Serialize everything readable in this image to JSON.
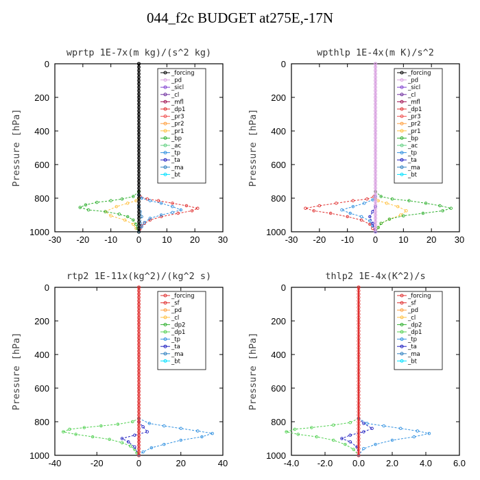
{
  "figure_title": "044_f2c  BUDGET at275E,-17N",
  "colors": {
    "forcing": "#000000",
    "pd": "#d8a0e0",
    "sicl": "#8040d0",
    "cl": "#7030a0",
    "mfl": "#a01050",
    "dp1": "#e03030",
    "pr3": "#f05050",
    "pr2": "#ffa040",
    "pr1": "#ffc040",
    "bp": "#30b030",
    "ac": "#60d080",
    "tp": "#3090e0",
    "ta": "#2020c0",
    "ma": "#3080c0",
    "bt": "#00e0ff",
    "sf": "#e03030",
    "dp2": "#40c040",
    "pd2": "#ffa040",
    "cl2": "#ffc040"
  },
  "chart_data": [
    {
      "type": "line",
      "title": "wprtp   1E-7x(m kg)/(s^2 kg)",
      "ylabel": "Pressure [hPa]",
      "xlim": [
        -30,
        30
      ],
      "ylim": [
        1000,
        0
      ],
      "xticks": [
        "-30",
        "-20",
        "-10",
        "0",
        "10",
        "20",
        "30"
      ],
      "yticks": [
        "0",
        "200",
        "400",
        "600",
        "800",
        "1000"
      ],
      "legend": [
        "_forcing",
        "_pd",
        "_sicl",
        "_cl",
        "_mfl",
        "_dp1",
        "_pr3",
        "_pr2",
        "_pr1",
        "_bp",
        "_ac",
        "_tp",
        "_ta",
        "_ma",
        "_bt"
      ],
      "series": [
        {
          "name": "_forcing",
          "color": "#000000",
          "x": [
            0,
            0
          ],
          "y": [
            0,
            1000
          ]
        },
        {
          "name": "_dp1",
          "color": "#e03030",
          "x": [
            0,
            0.5,
            3,
            7,
            12,
            17,
            21,
            19,
            14,
            8,
            4,
            2,
            1,
            0.5,
            0.2,
            0
          ],
          "y": [
            760,
            790,
            805,
            815,
            830,
            845,
            860,
            875,
            890,
            910,
            930,
            950,
            965,
            980,
            990,
            1000
          ]
        },
        {
          "name": "_pr1",
          "color": "#ffc040",
          "x": [
            0,
            -1,
            -4,
            -8,
            -12,
            -10,
            -5,
            -2,
            -1,
            0
          ],
          "y": [
            800,
            815,
            830,
            850,
            880,
            905,
            930,
            955,
            980,
            1000
          ]
        },
        {
          "name": "_bp",
          "color": "#30b030",
          "x": [
            0,
            -2,
            -6,
            -10,
            -15,
            -19,
            -21,
            -18,
            -12,
            -7,
            -4,
            -2,
            -1,
            -0.5,
            0
          ],
          "y": [
            760,
            790,
            805,
            815,
            825,
            840,
            855,
            870,
            880,
            895,
            910,
            930,
            955,
            980,
            1000
          ]
        },
        {
          "name": "_tp",
          "color": "#3090e0",
          "x": [
            0,
            1,
            4,
            8,
            12,
            15,
            12,
            8,
            4,
            2,
            1,
            0
          ],
          "y": [
            780,
            800,
            815,
            830,
            850,
            870,
            885,
            900,
            920,
            945,
            970,
            1000
          ]
        },
        {
          "name": "_ma",
          "color": "#3080c0",
          "x": [
            0,
            0.5,
            1,
            0.5,
            0
          ],
          "y": [
            850,
            880,
            910,
            950,
            1000
          ]
        }
      ]
    },
    {
      "type": "line",
      "title": "wpthlp   1E-4x(m K)/s^2",
      "ylabel": "Pressure [hPa]",
      "xlim": [
        -30,
        30
      ],
      "ylim": [
        1000,
        0
      ],
      "xticks": [
        "-30",
        "-20",
        "-10",
        "0",
        "10",
        "20",
        "30"
      ],
      "yticks": [
        "0",
        "200",
        "400",
        "600",
        "800",
        "1000"
      ],
      "legend": [
        "_forcing",
        "_pd",
        "_sicl",
        "_cl",
        "_mfl",
        "_dp1",
        "_pr3",
        "_pr2",
        "_pr1",
        "_bp",
        "_ac",
        "_tp",
        "_ta",
        "_ma",
        "_bt"
      ],
      "series": [
        {
          "name": "_pd",
          "color": "#d8a0e0",
          "x": [
            0,
            0
          ],
          "y": [
            0,
            1000
          ]
        },
        {
          "name": "_dp1",
          "color": "#e03030",
          "x": [
            0,
            -0.5,
            -3,
            -8,
            -14,
            -20,
            -25,
            -22,
            -16,
            -10,
            -5,
            -2,
            -1,
            0
          ],
          "y": [
            760,
            790,
            805,
            815,
            830,
            845,
            860,
            875,
            890,
            910,
            930,
            955,
            980,
            1000
          ]
        },
        {
          "name": "_pr1",
          "color": "#ffc040",
          "x": [
            0,
            1,
            4,
            8,
            11,
            9,
            5,
            2,
            1,
            0
          ],
          "y": [
            800,
            815,
            830,
            850,
            875,
            900,
            925,
            950,
            975,
            1000
          ]
        },
        {
          "name": "_bp",
          "color": "#30b030",
          "x": [
            0,
            2,
            6,
            12,
            18,
            23,
            27,
            24,
            17,
            10,
            5,
            2,
            1,
            0
          ],
          "y": [
            760,
            790,
            805,
            815,
            830,
            845,
            860,
            875,
            890,
            905,
            925,
            950,
            975,
            1000
          ]
        },
        {
          "name": "_tp",
          "color": "#3090e0",
          "x": [
            0,
            -1,
            -4,
            -8,
            -12,
            -9,
            -5,
            -2,
            -1,
            0
          ],
          "y": [
            790,
            810,
            830,
            850,
            870,
            890,
            910,
            935,
            965,
            1000
          ]
        },
        {
          "name": "_ta",
          "color": "#2020c0",
          "x": [
            0,
            -1,
            -2,
            -1,
            0
          ],
          "y": [
            850,
            880,
            910,
            950,
            1000
          ]
        }
      ]
    },
    {
      "type": "line",
      "title": "rtp2   1E-11x(kg^2)/(kg^2 s)",
      "ylabel": "Pressure [hPa]",
      "xlim": [
        -40,
        40
      ],
      "ylim": [
        1000,
        0
      ],
      "xticks": [
        "-40",
        "-20",
        "0",
        "20",
        "40"
      ],
      "yticks": [
        "0",
        "200",
        "400",
        "600",
        "800",
        "1000"
      ],
      "legend": [
        "_forcing",
        "_sf",
        "_pd",
        "_cl",
        "_dp2",
        "_dp1",
        "_tp",
        "_ta",
        "_ma",
        "_bt"
      ],
      "series": [
        {
          "name": "_forcing",
          "color": "#e03030",
          "x": [
            0,
            0
          ],
          "y": [
            0,
            1000
          ]
        },
        {
          "name": "_dp1",
          "color": "#50d050",
          "x": [
            0,
            -3,
            -10,
            -18,
            -26,
            -33,
            -36,
            -30,
            -22,
            -14,
            -8,
            -4,
            -2,
            -1,
            0
          ],
          "y": [
            780,
            800,
            815,
            825,
            835,
            845,
            860,
            875,
            890,
            905,
            925,
            945,
            965,
            985,
            1000
          ]
        },
        {
          "name": "_ta",
          "color": "#2020c0",
          "x": [
            0,
            2,
            4,
            -2,
            -8,
            -5,
            -2,
            0
          ],
          "y": [
            800,
            830,
            860,
            880,
            900,
            920,
            950,
            1000
          ]
        },
        {
          "name": "_ma",
          "color": "#3090e0",
          "x": [
            0,
            5,
            12,
            20,
            28,
            35,
            30,
            20,
            12,
            6,
            2,
            0
          ],
          "y": [
            780,
            810,
            825,
            840,
            855,
            870,
            890,
            910,
            935,
            955,
            980,
            1000
          ]
        }
      ]
    },
    {
      "type": "line",
      "title": "thlp2   1E-4x(K^2)/s",
      "ylabel": "Pressure [hPa]",
      "xlim": [
        -4,
        6
      ],
      "ylim": [
        1000,
        0
      ],
      "xticks": [
        "-4.0",
        "-2.0",
        "0.0",
        "2.0",
        "4.0",
        "6.0"
      ],
      "yticks": [
        "0",
        "200",
        "400",
        "600",
        "800",
        "1000"
      ],
      "legend": [
        "_forcing",
        "_sf",
        "_pd",
        "_cl",
        "_dp2",
        "_dp1",
        "_tp",
        "_ta",
        "_ma",
        "_bt"
      ],
      "series": [
        {
          "name": "_forcing",
          "color": "#e03030",
          "x": [
            0,
            0
          ],
          "y": [
            0,
            1000
          ]
        },
        {
          "name": "_dp1",
          "color": "#50d050",
          "x": [
            0,
            -0.5,
            -1.5,
            -2.8,
            -3.8,
            -4.3,
            -3.6,
            -2.5,
            -1.5,
            -0.8,
            -0.3,
            0
          ],
          "y": [
            780,
            805,
            820,
            835,
            845,
            860,
            875,
            890,
            910,
            935,
            965,
            1000
          ]
        },
        {
          "name": "_ta",
          "color": "#2020c0",
          "x": [
            0,
            0.3,
            0.8,
            0.3,
            -0.5,
            -1,
            -0.5,
            -0.1,
            0
          ],
          "y": [
            780,
            810,
            840,
            860,
            880,
            900,
            920,
            950,
            1000
          ]
        },
        {
          "name": "_ma",
          "color": "#3090e0",
          "x": [
            0,
            0.5,
            1.5,
            2.5,
            3.5,
            4.2,
            3.3,
            2,
            1,
            0.3,
            0
          ],
          "y": [
            780,
            810,
            825,
            840,
            855,
            870,
            890,
            910,
            935,
            960,
            1000
          ]
        }
      ]
    }
  ]
}
